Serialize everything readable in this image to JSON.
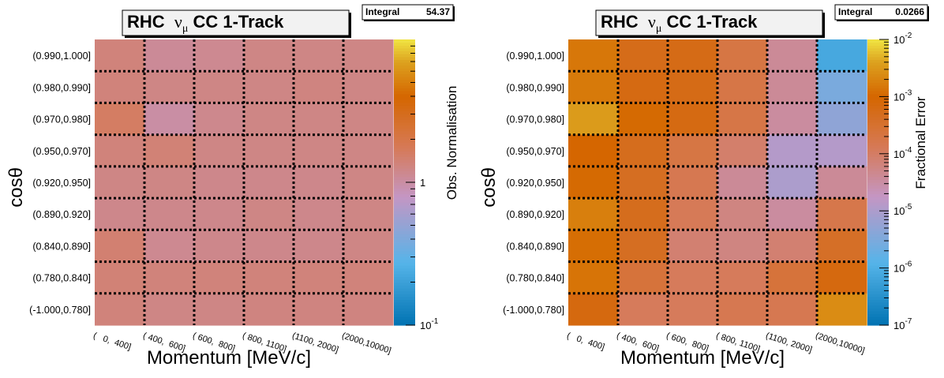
{
  "chart_data": [
    {
      "type": "heatmap",
      "title_parts": [
        "RHC  ",
        "ν",
        "μ",
        " CC 1-Track"
      ],
      "integral_label": "Integral",
      "integral_value": "54.37",
      "xlabel": "Momentum [MeV/c]",
      "ylabel": "cosθ",
      "x_categories": [
        "(   0,  400]",
        "( 400,  600]",
        "( 600,  800]",
        "( 800, 1100]",
        "(1100, 2000]",
        "(2000,10000]"
      ],
      "y_categories": [
        "(0.990,1.000]",
        "(0.980,0.990]",
        "(0.970,0.980]",
        "(0.950,0.970]",
        "(0.920,0.950]",
        "(0.890,0.920]",
        "(0.840,0.890]",
        "(0.780,0.840]",
        "(-1.000,0.780]"
      ],
      "z": [
        [
          1.35,
          1.1,
          1.15,
          1.25,
          1.25,
          1.25
        ],
        [
          1.35,
          1.25,
          1.25,
          1.25,
          1.3,
          1.25
        ],
        [
          1.6,
          1.0,
          1.18,
          1.25,
          1.25,
          1.25
        ],
        [
          1.35,
          1.4,
          1.25,
          1.25,
          1.25,
          1.25
        ],
        [
          1.25,
          1.25,
          1.2,
          1.2,
          1.2,
          1.25
        ],
        [
          1.2,
          1.2,
          1.2,
          1.25,
          1.2,
          1.25
        ],
        [
          1.45,
          1.15,
          1.2,
          1.2,
          1.2,
          1.25
        ],
        [
          1.4,
          1.35,
          1.35,
          1.35,
          1.35,
          1.35
        ],
        [
          1.35,
          1.25,
          1.25,
          1.3,
          1.3,
          1.3
        ]
      ],
      "zlabel": "Obs. Normalisation",
      "zscale": "log",
      "zlim": [
        0.1,
        10
      ],
      "z_ticks": [
        {
          "value": 0.1,
          "mantissa": "10",
          "exp": "-1"
        },
        {
          "value": 1,
          "mantissa": "1",
          "exp": ""
        }
      ]
    },
    {
      "type": "heatmap",
      "title_parts": [
        "RHC  ",
        "ν",
        "μ",
        " CC 1-Track"
      ],
      "integral_label": "Integral",
      "integral_value": "0.0266",
      "xlabel": "Momentum [MeV/c]",
      "ylabel": "cosθ",
      "x_categories": [
        "(   0,  400]",
        "( 400,  600]",
        "( 600,  800]",
        "( 800, 1100]",
        "(1100, 2000]",
        "(2000,10000]"
      ],
      "y_categories": [
        "(0.990,1.000]",
        "(0.980,0.990]",
        "(0.970,0.980]",
        "(0.950,0.970]",
        "(0.920,0.950]",
        "(0.890,0.920]",
        "(0.840,0.890]",
        "(0.780,0.840]",
        "(-1.000,0.780]"
      ],
      "z": [
        [
          0.0015,
          0.00055,
          0.0006,
          0.0002,
          4e-05,
          8e-07
        ],
        [
          0.0016,
          0.00065,
          0.0006,
          0.00019,
          4e-05,
          3e-06
        ],
        [
          0.0035,
          0.0011,
          0.00065,
          0.00019,
          3.5e-05,
          5e-06
        ],
        [
          0.001,
          0.0005,
          0.0002,
          9e-05,
          1.2e-05,
          1.2e-05
        ],
        [
          0.0011,
          0.00045,
          0.00015,
          4e-05,
          1e-05,
          4e-05
        ],
        [
          0.0018,
          0.0005,
          0.00013,
          6e-05,
          3.5e-05,
          0.00017
        ],
        [
          0.0012,
          0.00045,
          8e-05,
          6e-05,
          8e-05,
          0.0004
        ],
        [
          0.0014,
          0.00025,
          0.00012,
          0.00012,
          0.00025,
          0.0007
        ],
        [
          0.0007,
          0.00012,
          0.00012,
          0.00015,
          0.00015,
          0.0025
        ]
      ],
      "zlabel": "Fractional Error",
      "zscale": "log",
      "zlim": [
        1e-07,
        0.01
      ],
      "z_ticks": [
        {
          "value": 1e-07,
          "mantissa": "10",
          "exp": "-7"
        },
        {
          "value": 1e-06,
          "mantissa": "10",
          "exp": "-6"
        },
        {
          "value": 1e-05,
          "mantissa": "10",
          "exp": "-5"
        },
        {
          "value": 0.0001,
          "mantissa": "10",
          "exp": "-4"
        },
        {
          "value": 0.001,
          "mantissa": "10",
          "exp": "-3"
        },
        {
          "value": 0.01,
          "mantissa": "10",
          "exp": "-2"
        }
      ]
    }
  ]
}
